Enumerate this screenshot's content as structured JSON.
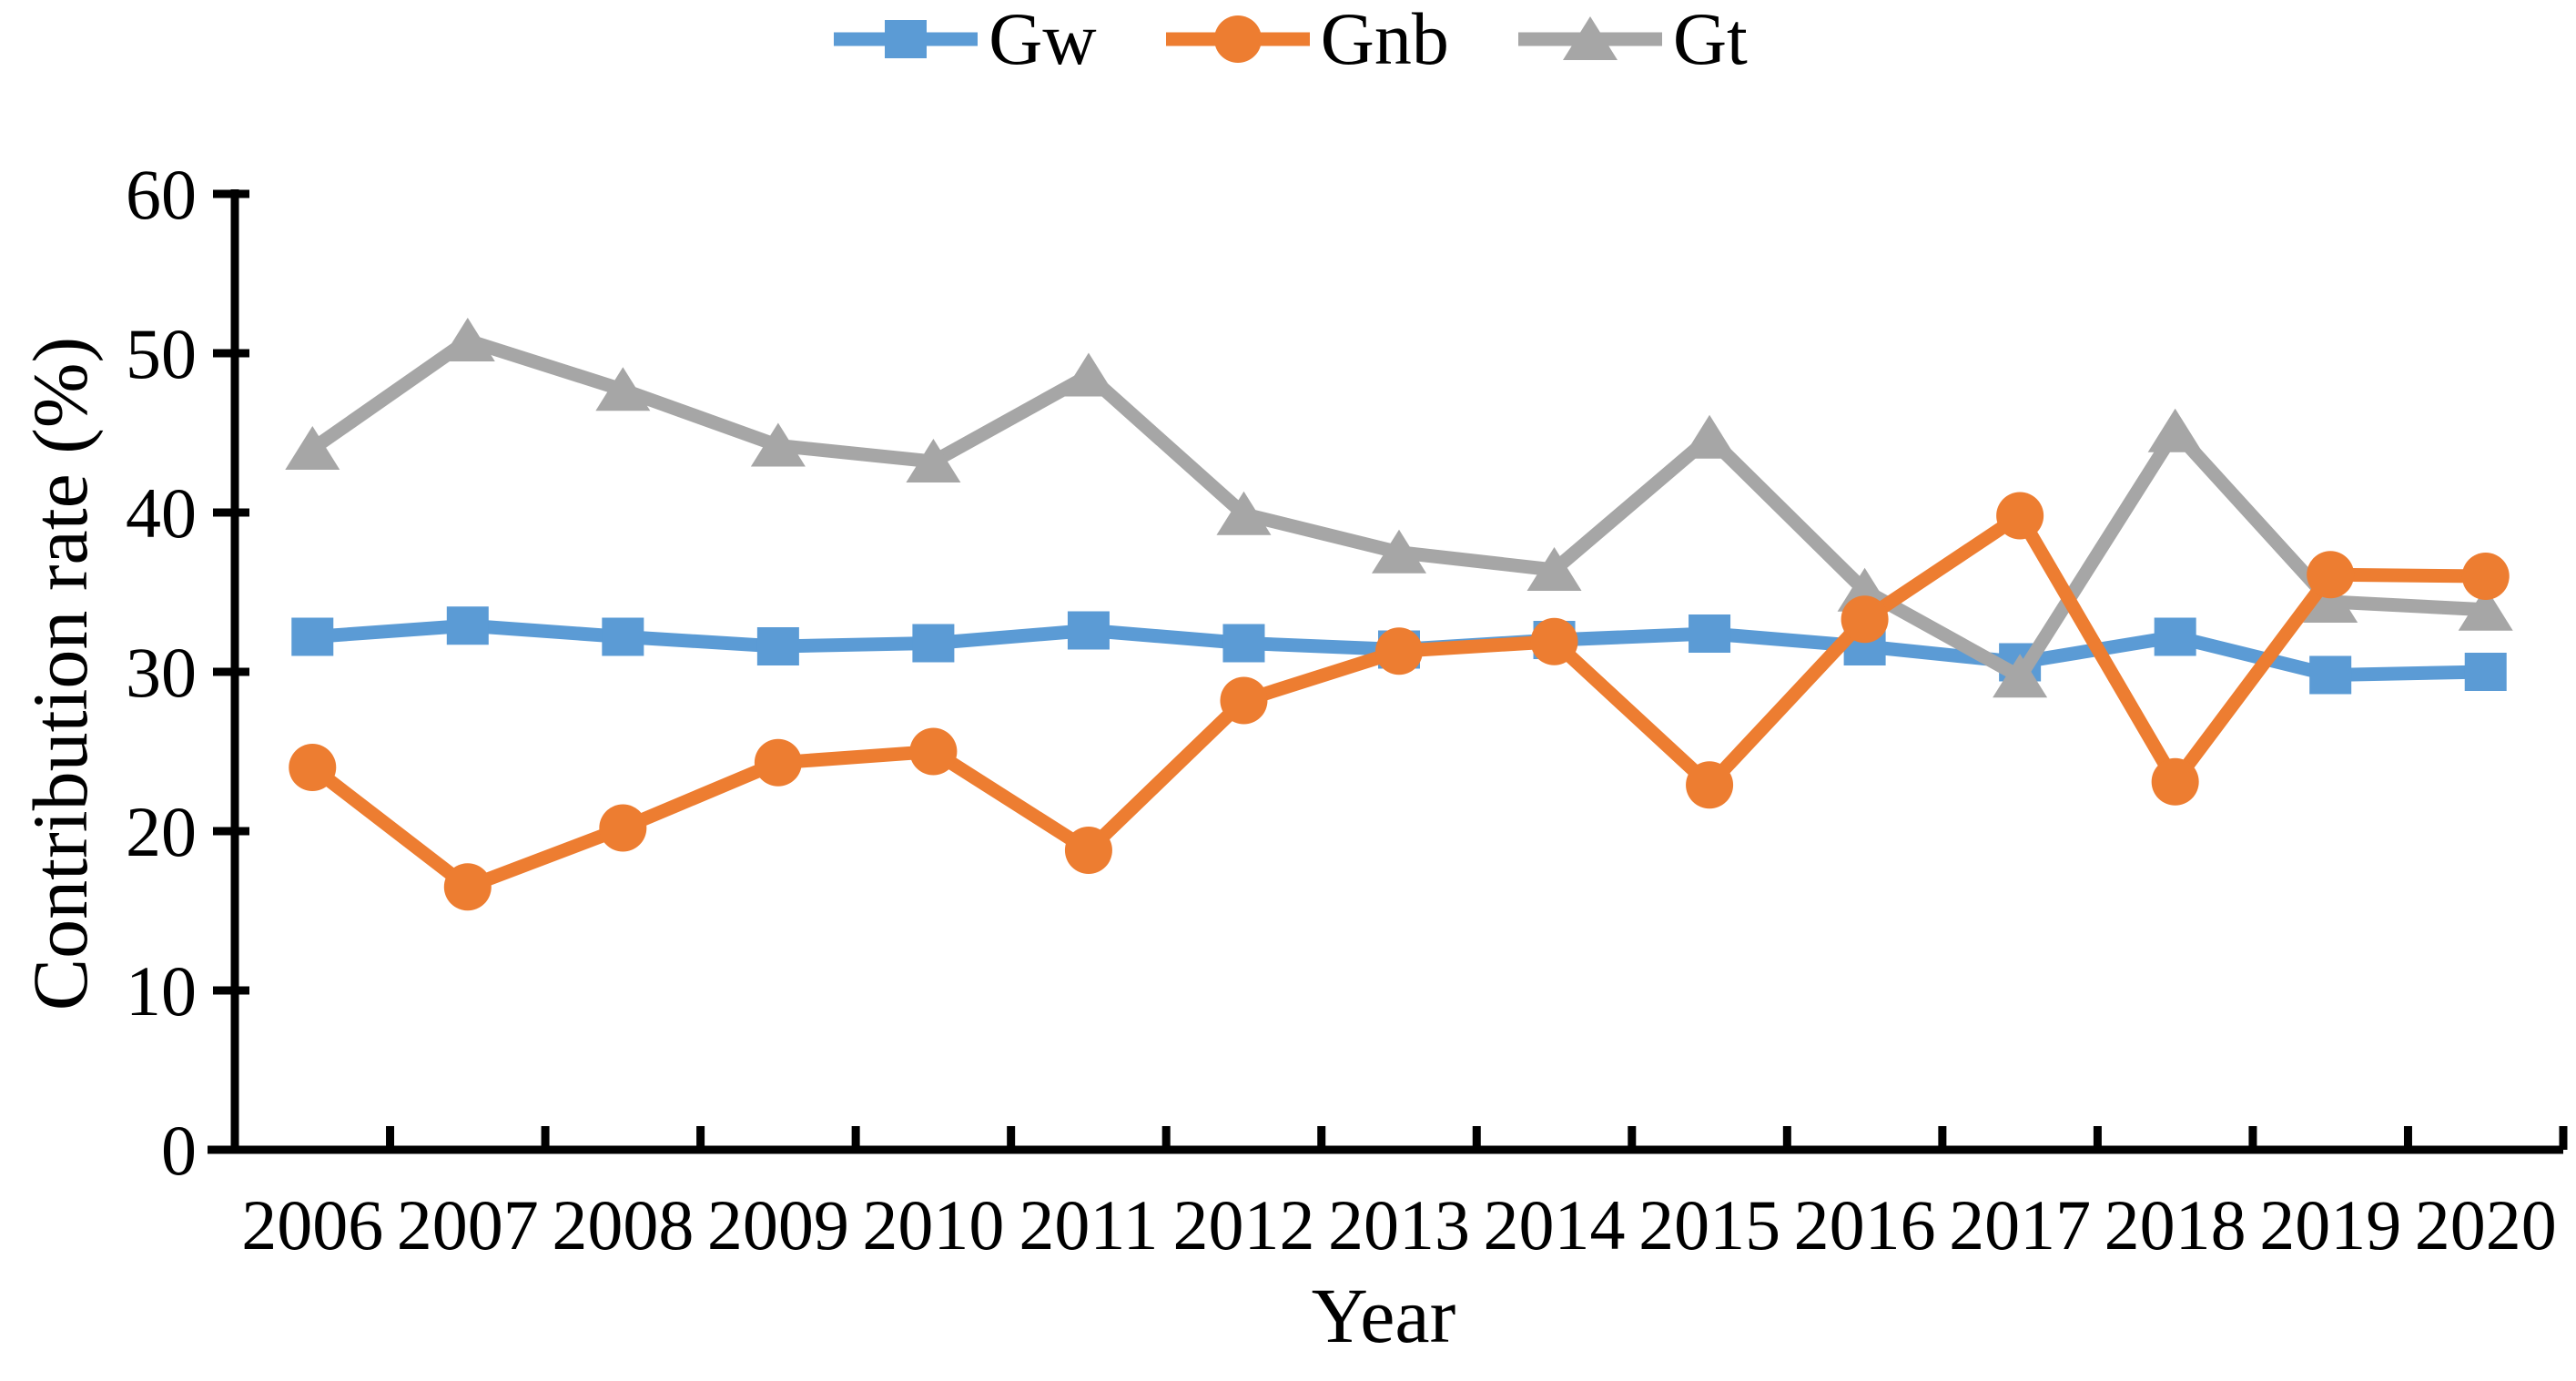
{
  "legend": {
    "items": [
      {
        "label": "Gw",
        "marker": "square-marker-icon",
        "color": "#5B9BD5"
      },
      {
        "label": "Gnb",
        "marker": "circle-marker-icon",
        "color": "#ED7D31"
      },
      {
        "label": "Gt",
        "marker": "triangle-marker-icon",
        "color": "#A6A6A6"
      }
    ]
  },
  "chart_data": {
    "type": "line",
    "title": "",
    "xlabel": "Year",
    "ylabel": "Contribution rate (%)",
    "categories": [
      "2006",
      "2007",
      "2008",
      "2009",
      "2010",
      "2011",
      "2012",
      "2013",
      "2014",
      "2015",
      "2016",
      "2017",
      "2018",
      "2019",
      "2020"
    ],
    "series": [
      {
        "name": "Gw",
        "color": "#5B9BD5",
        "marker": "square",
        "values": [
          32.2,
          32.9,
          32.2,
          31.6,
          31.8,
          32.6,
          31.8,
          31.4,
          32.0,
          32.4,
          31.6,
          30.6,
          32.2,
          29.8,
          30.0
        ]
      },
      {
        "name": "Gnb",
        "color": "#ED7D31",
        "marker": "circle",
        "values": [
          24.0,
          16.5,
          20.2,
          24.3,
          25.0,
          18.8,
          28.2,
          31.3,
          31.9,
          22.9,
          33.3,
          39.8,
          23.1,
          36.1,
          36.0
        ]
      },
      {
        "name": "Gt",
        "color": "#A6A6A6",
        "marker": "triangle",
        "values": [
          44.0,
          50.8,
          47.7,
          44.2,
          43.2,
          48.6,
          39.9,
          37.5,
          36.4,
          44.7,
          35.1,
          29.7,
          45.1,
          34.4,
          33.9
        ]
      }
    ],
    "draw_order": [
      0,
      2,
      1
    ],
    "ylim": [
      0,
      60
    ],
    "y_ticks": [
      0,
      10,
      20,
      30,
      40,
      50,
      60
    ],
    "grid": false,
    "legend_position": "top"
  }
}
